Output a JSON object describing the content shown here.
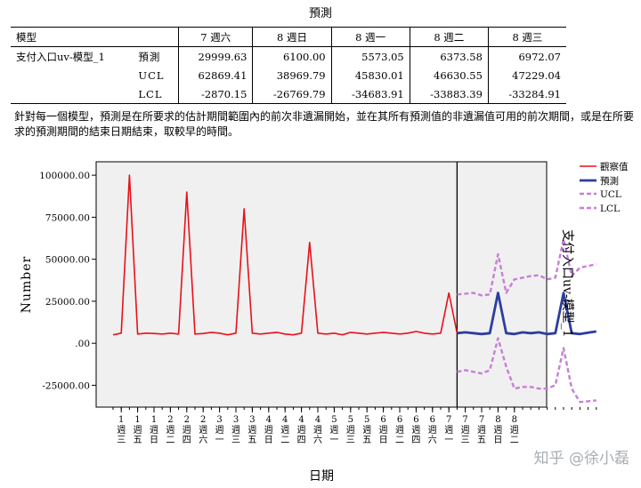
{
  "table": {
    "title": "預測",
    "header": [
      "模型",
      "",
      "7 週六",
      "8 週日",
      "8 週一",
      "8 週二",
      "8 週三"
    ],
    "model_name": "支付入口uv-模型_1",
    "rows": [
      {
        "label": "預測",
        "values": [
          "29999.63",
          "6100.00",
          "5573.05",
          "6373.58",
          "6972.07"
        ]
      },
      {
        "label": "UCL",
        "values": [
          "62869.41",
          "38969.79",
          "45830.01",
          "46630.55",
          "47229.04"
        ]
      },
      {
        "label": "LCL",
        "values": [
          "-2870.15",
          "-26769.79",
          "-34683.91",
          "-33883.39",
          "-33284.91"
        ]
      }
    ],
    "note": "針對每一個模型，預測是在所要求的估計期間範圍內的前次非遺漏開始，並在其所有預測值的非遺漏值可用的前次期間，或是在所要求的預測期間的結束日期結束，取較早的時間。"
  },
  "chart_data": {
    "type": "line",
    "ylabel": "Number",
    "xlabel": "日期",
    "right_label": "支付入口uv-模型_1",
    "ylim": [
      -38000,
      108000
    ],
    "yticks": [
      100000,
      75000,
      50000,
      25000,
      0,
      -25000
    ],
    "ytick_labels": [
      "100000.00",
      "75000.00",
      "50000.00",
      "25000.00",
      ".00",
      "-25000.00"
    ],
    "x_ticks": [
      {
        "num": "1",
        "day": "週三"
      },
      {
        "num": "1",
        "day": "週五"
      },
      {
        "num": "1",
        "day": "週日"
      },
      {
        "num": "2",
        "day": "週二"
      },
      {
        "num": "2",
        "day": "週四"
      },
      {
        "num": "2",
        "day": "週六"
      },
      {
        "num": "3",
        "day": "週一"
      },
      {
        "num": "3",
        "day": "週三"
      },
      {
        "num": "3",
        "day": "週五"
      },
      {
        "num": "4",
        "day": "週日"
      },
      {
        "num": "4",
        "day": "週二"
      },
      {
        "num": "4",
        "day": "週四"
      },
      {
        "num": "4",
        "day": "週六"
      },
      {
        "num": "5",
        "day": "週一"
      },
      {
        "num": "5",
        "day": "週三"
      },
      {
        "num": "5",
        "day": "週五"
      },
      {
        "num": "6",
        "day": "週日"
      },
      {
        "num": "6",
        "day": "週二"
      },
      {
        "num": "6",
        "day": "週四"
      },
      {
        "num": "6",
        "day": "週六"
      },
      {
        "num": "7",
        "day": "週一"
      },
      {
        "num": "7",
        "day": "週三"
      },
      {
        "num": "7",
        "day": "週五"
      },
      {
        "num": "8",
        "day": "週日"
      },
      {
        "num": "8",
        "day": "週二"
      }
    ],
    "divider_index": 42,
    "series": [
      {
        "name": "觀察值",
        "color": "#e8111a",
        "style": "solid",
        "start": 0,
        "values": [
          5000,
          6000,
          100000,
          5500,
          6000,
          5800,
          5500,
          6000,
          5500,
          90000,
          5500,
          5800,
          6500,
          6000,
          5000,
          6000,
          80000,
          6000,
          5500,
          6000,
          6500,
          5500,
          5000,
          6000,
          60000,
          6000,
          5500,
          6000,
          5000,
          6500,
          6000,
          5500,
          6000,
          6500,
          6000,
          5500,
          6000,
          7000,
          6000,
          5500,
          6000,
          30000,
          6000
        ]
      },
      {
        "name": "預測",
        "color": "#2c3e9e",
        "style": "solid",
        "start": 42,
        "values": [
          6000,
          6500,
          6000,
          5500,
          6000,
          30000,
          6000,
          5500,
          6500,
          6000,
          6500,
          5500,
          6000,
          30000,
          6000,
          5500,
          6300,
          7000
        ]
      },
      {
        "name": "UCL",
        "color": "#c77fd6",
        "style": "dashed",
        "start": 42,
        "values": [
          29000,
          29500,
          30000,
          28500,
          29000,
          53000,
          30000,
          38000,
          39000,
          40000,
          40500,
          38000,
          39000,
          62000,
          40000,
          45000,
          46000,
          47000
        ]
      },
      {
        "name": "LCL",
        "color": "#c77fd6",
        "style": "dashed",
        "start": 42,
        "values": [
          -17000,
          -16000,
          -17000,
          -18000,
          -16000,
          3000,
          -14000,
          -27000,
          -26000,
          -26000,
          -27000,
          -27000,
          -25000,
          -2800,
          -27000,
          -35000,
          -34500,
          -34000
        ]
      }
    ]
  },
  "watermark": "知乎 @徐小磊"
}
